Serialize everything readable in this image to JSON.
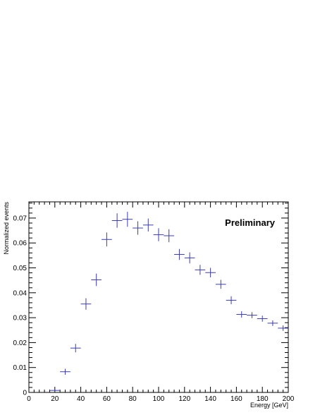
{
  "chart_data": {
    "type": "scatter",
    "title": "",
    "xlabel": "Energy [GeV]",
    "ylabel": "Normalized events",
    "annotation": "Preliminary",
    "xlim": [
      0,
      200
    ],
    "ylim": [
      0,
      0.0765
    ],
    "xticks": [
      0,
      20,
      40,
      60,
      80,
      100,
      120,
      140,
      160,
      180,
      200
    ],
    "yticks": [
      0,
      0.01,
      0.02,
      0.03,
      0.04,
      0.05,
      0.06,
      0.07
    ],
    "ytick_labels": [
      "0",
      "0.01",
      "0.02",
      "0.03",
      "0.04",
      "0.05",
      "0.06",
      "0.07"
    ],
    "grid": false,
    "marker_color": "#3b3bb5",
    "bin_half_width": 4,
    "series": [
      {
        "x": [
          20,
          28,
          36,
          44,
          52,
          60,
          68,
          76,
          84,
          92,
          100,
          108,
          116,
          124,
          132,
          140,
          148,
          156,
          164,
          172,
          180,
          188,
          196
        ],
        "y": [
          0.0008,
          0.0083,
          0.0178,
          0.0355,
          0.0452,
          0.0614,
          0.069,
          0.0695,
          0.066,
          0.0672,
          0.0633,
          0.0629,
          0.0554,
          0.054,
          0.0492,
          0.0481,
          0.0434,
          0.037,
          0.0313,
          0.031,
          0.0296,
          0.0278,
          0.0258
        ],
        "yerr": [
          0.0005,
          0.0012,
          0.0017,
          0.0023,
          0.0025,
          0.0028,
          0.0029,
          0.003,
          0.0027,
          0.0026,
          0.0026,
          0.0026,
          0.0022,
          0.0022,
          0.002,
          0.0019,
          0.0018,
          0.0016,
          0.0013,
          0.0012,
          0.0012,
          0.0011,
          0.0011
        ]
      }
    ]
  }
}
